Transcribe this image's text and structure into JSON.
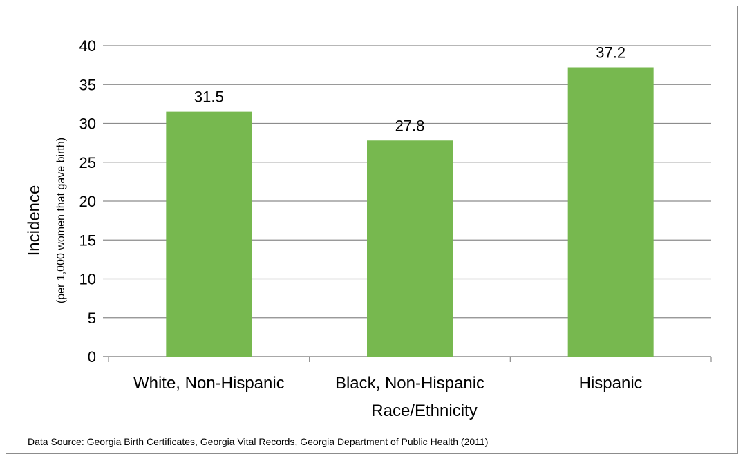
{
  "chart_data": {
    "type": "bar",
    "categories": [
      "White, Non-Hispanic",
      "Black, Non-Hispanic",
      "Hispanic"
    ],
    "values": [
      31.5,
      27.8,
      37.2
    ],
    "data_labels": [
      "31.5",
      "27.8",
      "37.2"
    ],
    "xlabel": "Race/Ethnicity",
    "ylabel": "Incidence",
    "ylabel_sub": "(per 1,000 women that gave birth)",
    "ylim": [
      0,
      40
    ],
    "yticks": [
      0,
      5,
      10,
      15,
      20,
      25,
      30,
      35,
      40
    ],
    "grid": true,
    "bar_color": "#77b84f",
    "grid_color": "#8c8c8c"
  },
  "source_note": "Data Source:  Georgia Birth  Certificates, Georgia Vital Records, Georgia Department of Public Health (2011)"
}
